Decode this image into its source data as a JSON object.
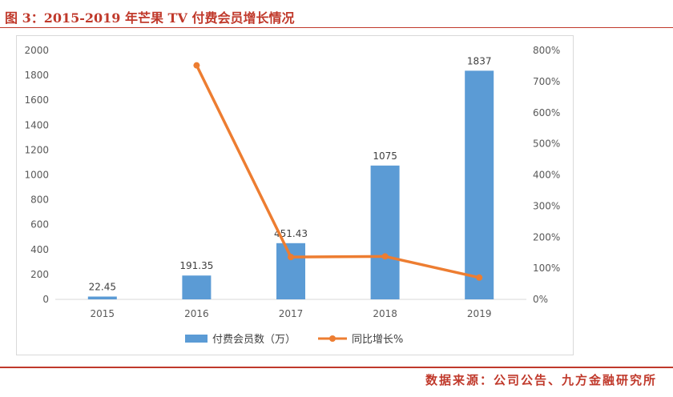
{
  "figure_title": "图 3：2015-2019 年芒果 TV 付费会员增长情况",
  "source_note": "数据来源：公司公告、九方金融研究所",
  "colors": {
    "bar": "#5b9bd5",
    "line": "#ed7d31",
    "accent": "#c0392b"
  },
  "chart_data": {
    "type": "bar",
    "categories": [
      "2015",
      "2016",
      "2017",
      "2018",
      "2019"
    ],
    "series": [
      {
        "name": "付费会员数（万）",
        "type": "bar",
        "axis": "left",
        "values": [
          22.45,
          191.35,
          451.43,
          1075,
          1837
        ],
        "labels": [
          "22.45",
          "191.35",
          "451.43",
          "1075",
          "1837"
        ]
      },
      {
        "name": "同比增长%",
        "type": "line",
        "axis": "right",
        "values": [
          null,
          752,
          136,
          138,
          70
        ]
      }
    ],
    "y_left": {
      "min": 0,
      "max": 2000,
      "ticks": [
        "0",
        "200",
        "400",
        "600",
        "800",
        "1000",
        "1200",
        "1400",
        "1600",
        "1800",
        "2000"
      ]
    },
    "y_right": {
      "min": 0,
      "max": 800,
      "ticks": [
        "0%",
        "100%",
        "200%",
        "300%",
        "400%",
        "500%",
        "600%",
        "700%",
        "800%"
      ]
    },
    "legend_position": "bottom",
    "grid": false
  }
}
